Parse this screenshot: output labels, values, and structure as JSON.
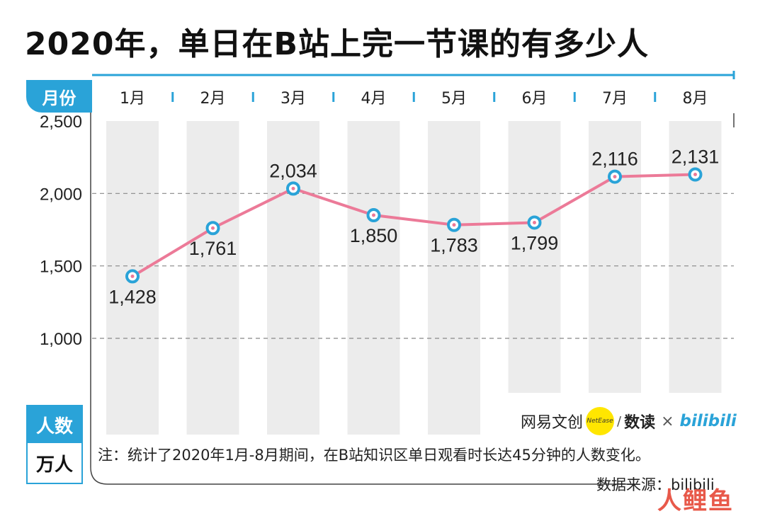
{
  "title": "2020年，单日在B站上完一节课的有多少人",
  "xaxis_tag": "月份",
  "y_unit": {
    "top": "人数",
    "bottom": "万人"
  },
  "note": "注：统计了2020年1月-8月期间，在B站知识区单日观看时长达45分钟的人数变化。",
  "source": "数据来源：bilibili",
  "credits": {
    "netease": "网易文创",
    "netease_logo": "NetEase",
    "slash": "/",
    "shudu": "数读",
    "times": "×",
    "bilibili": "bilibili"
  },
  "watermark": "人鲤鱼",
  "colors": {
    "accent": "#2aa3d8",
    "line": "#ec7a98",
    "column_bg": "#ececec",
    "grid": "#888888"
  },
  "chart_data": {
    "type": "line",
    "categories": [
      "1月",
      "2月",
      "3月",
      "4月",
      "5月",
      "6月",
      "7月",
      "8月"
    ],
    "values": [
      1428,
      1761,
      2034,
      1850,
      1783,
      1799,
      2116,
      2131
    ],
    "value_labels": [
      "1,428",
      "1,761",
      "2,034",
      "1,850",
      "1,783",
      "1,799",
      "2,116",
      "2,131"
    ],
    "title": "2020年，单日在B站上完一节课的有多少人",
    "xlabel": "月份",
    "ylabel": "人数",
    "y_unit": "万人",
    "ylim": [
      0,
      2500
    ],
    "yticks": [
      1000,
      1500,
      2000,
      2500
    ],
    "ytick_labels": [
      "1,000",
      "1,500",
      "2,000",
      "2,500"
    ],
    "grid": true,
    "legend": "none"
  }
}
